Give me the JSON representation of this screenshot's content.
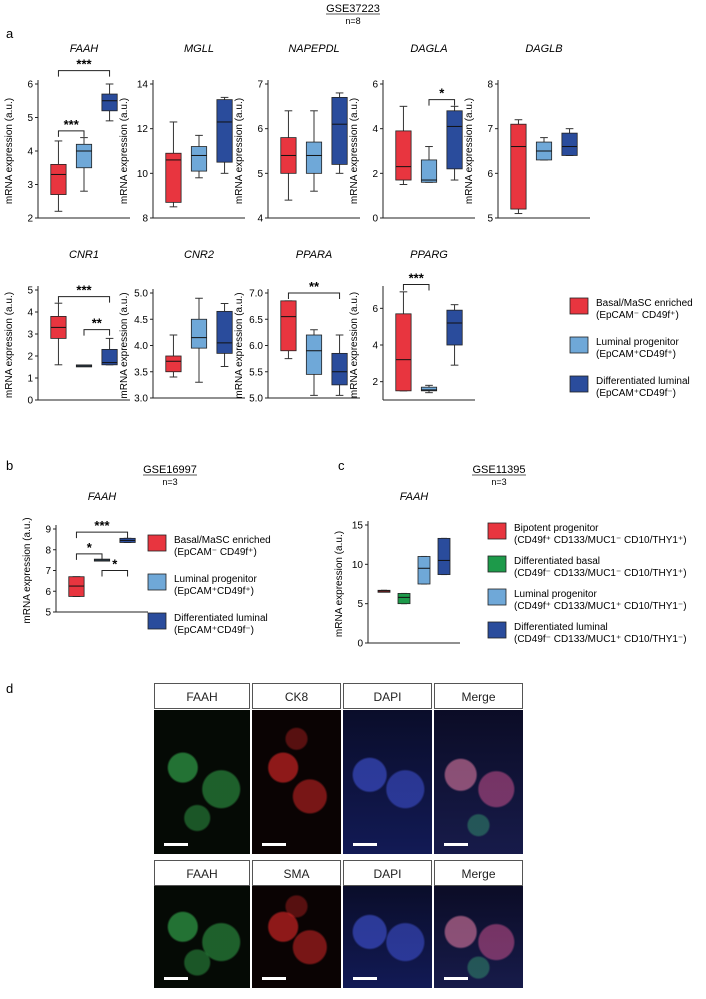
{
  "colors": {
    "red": "#e8353f",
    "light": "#6fa8d8",
    "dark": "#2a4c9c",
    "green": "#1d9a4a",
    "black": "#000000"
  },
  "sections": {
    "a": {
      "letter": "a",
      "dataset": "GSE37223",
      "n": "n=8"
    },
    "b": {
      "letter": "b",
      "dataset": "GSE16997",
      "n": "n=3"
    },
    "c": {
      "letter": "c",
      "dataset": "GSE11395",
      "n": "n=3"
    },
    "d": {
      "letter": "d"
    }
  },
  "ylabel": "mRNA expression (a.u.)",
  "legend_a": [
    {
      "line1": "Basal/MaSC enriched",
      "line2": "(EpCAM⁻ CD49f⁺)",
      "color": "red"
    },
    {
      "line1": "Luminal progenitor",
      "line2": "(EpCAM⁺CD49f⁺)",
      "color": "light"
    },
    {
      "line1": "Differentiated luminal",
      "line2": "(EpCAM⁺CD49f⁻)",
      "color": "dark"
    }
  ],
  "legend_c": [
    {
      "line1": "Bipotent progenitor",
      "line2": "(CD49f⁺ CD133/MUC1⁻ CD10/THY1⁺)",
      "color": "red"
    },
    {
      "line1": "Differentiated basal",
      "line2": "(CD49f⁻ CD133/MUC1⁻ CD10/THY1⁺)",
      "color": "green"
    },
    {
      "line1": "Luminal progenitor",
      "line2": "(CD49f⁺ CD133/MUC1⁺ CD10/THY1⁻)",
      "color": "light"
    },
    {
      "line1": "Differentiated luminal",
      "line2": "(CD49f⁻ CD133/MUC1⁺ CD10/THY1⁻)",
      "color": "dark"
    }
  ],
  "chart_data": [
    {
      "type": "box",
      "title": "FAAH",
      "ylim": [
        2,
        6
      ],
      "yticks": [
        "2",
        "3",
        "4",
        "5",
        "6"
      ],
      "colors": [
        "red",
        "light",
        "dark"
      ],
      "boxes": [
        {
          "min": 2.2,
          "q1": 2.7,
          "median": 3.3,
          "q3": 3.6,
          "max": 4.3
        },
        {
          "min": 2.8,
          "q1": 3.5,
          "median": 4.0,
          "q3": 4.2,
          "max": 4.4
        },
        {
          "min": 4.9,
          "q1": 5.2,
          "median": 5.5,
          "q3": 5.7,
          "max": 6.0
        }
      ],
      "sig": [
        {
          "label": "***",
          "from": 0,
          "to": 2,
          "y": 6.4
        },
        {
          "label": "***",
          "from": 0,
          "to": 1,
          "y": 4.6
        }
      ]
    },
    {
      "type": "box",
      "title": "MGLL",
      "ylim": [
        8,
        14
      ],
      "yticks": [
        "8",
        "10",
        "12",
        "14"
      ],
      "colors": [
        "red",
        "light",
        "dark"
      ],
      "boxes": [
        {
          "min": 8.5,
          "q1": 8.7,
          "median": 10.6,
          "q3": 10.9,
          "max": 12.3
        },
        {
          "min": 9.8,
          "q1": 10.1,
          "median": 10.8,
          "q3": 11.2,
          "max": 11.7
        },
        {
          "min": 10.0,
          "q1": 10.5,
          "median": 12.3,
          "q3": 13.3,
          "max": 13.4
        }
      ],
      "sig": []
    },
    {
      "type": "box",
      "title": "NAPEPDL",
      "ylim": [
        4,
        7
      ],
      "yticks": [
        "4",
        "5",
        "6",
        "7"
      ],
      "colors": [
        "red",
        "light",
        "dark"
      ],
      "boxes": [
        {
          "min": 4.4,
          "q1": 5.0,
          "median": 5.4,
          "q3": 5.8,
          "max": 6.4
        },
        {
          "min": 4.6,
          "q1": 5.0,
          "median": 5.4,
          "q3": 5.7,
          "max": 6.4
        },
        {
          "min": 5.0,
          "q1": 5.2,
          "median": 6.1,
          "q3": 6.7,
          "max": 6.8
        }
      ],
      "sig": []
    },
    {
      "type": "box",
      "title": "DAGLA",
      "ylim": [
        0,
        6
      ],
      "yticks": [
        "0",
        "2",
        "4",
        "6"
      ],
      "colors": [
        "red",
        "light",
        "dark"
      ],
      "boxes": [
        {
          "min": 1.5,
          "q1": 1.7,
          "median": 2.3,
          "q3": 3.9,
          "max": 5.0
        },
        {
          "min": 1.6,
          "q1": 1.6,
          "median": 1.7,
          "q3": 2.6,
          "max": 3.2
        },
        {
          "min": 1.7,
          "q1": 2.2,
          "median": 4.1,
          "q3": 4.8,
          "max": 5.0
        }
      ],
      "sig": [
        {
          "label": "*",
          "from": 1,
          "to": 2,
          "y": 5.3
        }
      ]
    },
    {
      "type": "box",
      "title": "DAGLB",
      "ylim": [
        5,
        8
      ],
      "yticks": [
        "5",
        "6",
        "7",
        "8"
      ],
      "colors": [
        "red",
        "light",
        "dark"
      ],
      "boxes": [
        {
          "min": 5.1,
          "q1": 5.2,
          "median": 6.6,
          "q3": 7.1,
          "max": 7.2
        },
        {
          "min": 6.3,
          "q1": 6.3,
          "median": 6.5,
          "q3": 6.7,
          "max": 6.8
        },
        {
          "min": 6.4,
          "q1": 6.4,
          "median": 6.6,
          "q3": 6.9,
          "max": 7.0
        }
      ],
      "sig": []
    },
    {
      "type": "box",
      "title": "CNR1",
      "ylim": [
        0,
        5
      ],
      "yticks": [
        "0",
        "1",
        "2",
        "3",
        "4",
        "5"
      ],
      "colors": [
        "red",
        "light",
        "dark"
      ],
      "boxes": [
        {
          "min": 1.6,
          "q1": 2.8,
          "median": 3.3,
          "q3": 3.8,
          "max": 4.4
        },
        {
          "min": 1.55,
          "q1": 1.55,
          "median": 1.55,
          "q3": 1.55,
          "max": 1.55
        },
        {
          "min": 1.6,
          "q1": 1.6,
          "median": 1.7,
          "q3": 2.3,
          "max": 2.8
        }
      ],
      "sig": [
        {
          "label": "***",
          "from": 0,
          "to": 2,
          "y": 4.7
        },
        {
          "label": "**",
          "from": 1,
          "to": 2,
          "y": 3.2
        }
      ]
    },
    {
      "type": "box",
      "title": "CNR2",
      "ylim": [
        3,
        5
      ],
      "yticks": [
        "3.0",
        "3.5",
        "4.0",
        "4.5",
        "5.0"
      ],
      "colors": [
        "red",
        "light",
        "dark"
      ],
      "boxes": [
        {
          "min": 3.4,
          "q1": 3.5,
          "median": 3.7,
          "q3": 3.8,
          "max": 4.2
        },
        {
          "min": 3.3,
          "q1": 3.95,
          "median": 4.15,
          "q3": 4.5,
          "max": 4.9
        },
        {
          "min": 3.6,
          "q1": 3.85,
          "median": 4.05,
          "q3": 4.65,
          "max": 4.8
        }
      ],
      "sig": []
    },
    {
      "type": "box",
      "title": "PPARA",
      "ylim": [
        5,
        7
      ],
      "yticks": [
        "5.0",
        "5.5",
        "6.0",
        "6.5",
        "7.0"
      ],
      "colors": [
        "red",
        "light",
        "dark"
      ],
      "boxes": [
        {
          "min": 5.75,
          "q1": 5.9,
          "median": 6.55,
          "q3": 6.85,
          "max": 6.85
        },
        {
          "min": 5.05,
          "q1": 5.45,
          "median": 5.9,
          "q3": 6.2,
          "max": 6.3
        },
        {
          "min": 5.05,
          "q1": 5.25,
          "median": 5.5,
          "q3": 5.85,
          "max": 6.2
        }
      ],
      "sig": [
        {
          "label": "**",
          "from": 0,
          "to": 2,
          "y": 7.0
        }
      ]
    },
    {
      "type": "box",
      "title": "PPARG",
      "ylim": [
        1,
        7
      ],
      "yticks": [
        "2",
        "4",
        "6"
      ],
      "colors": [
        "red",
        "light",
        "dark"
      ],
      "boxes": [
        {
          "min": 1.5,
          "q1": 1.5,
          "median": 3.2,
          "q3": 5.7,
          "max": 6.9
        },
        {
          "min": 1.4,
          "q1": 1.5,
          "median": 1.55,
          "q3": 1.7,
          "max": 1.8
        },
        {
          "min": 2.9,
          "q1": 4.0,
          "median": 5.2,
          "q3": 5.9,
          "max": 6.2
        }
      ],
      "sig": [
        {
          "label": "***",
          "from": 0,
          "to": 1,
          "y": 7.3
        }
      ]
    },
    {
      "type": "box",
      "title": "FAAH",
      "ylim": [
        5,
        9
      ],
      "yticks": [
        "5",
        "6",
        "7",
        "8",
        "9"
      ],
      "colors": [
        "red",
        "light",
        "dark"
      ],
      "boxes": [
        {
          "min": 5.75,
          "q1": 5.75,
          "median": 6.25,
          "q3": 6.7,
          "max": 6.7
        },
        {
          "min": 7.5,
          "q1": 7.5,
          "median": 7.5,
          "q3": 7.5,
          "max": 7.5
        },
        {
          "min": 8.35,
          "q1": 8.35,
          "median": 8.45,
          "q3": 8.55,
          "max": 8.55
        }
      ],
      "sig": [
        {
          "label": "***",
          "from": 0,
          "to": 2,
          "y": 8.85
        },
        {
          "label": "*",
          "from": 0,
          "to": 1,
          "y": 7.8
        },
        {
          "label": "*",
          "from": 1,
          "to": 2,
          "y": 7.0
        }
      ]
    },
    {
      "type": "box",
      "title": "FAAH",
      "ylim": [
        0,
        15
      ],
      "yticks": [
        "0",
        "5",
        "10",
        "15"
      ],
      "colors": [
        "red",
        "green",
        "light",
        "dark"
      ],
      "boxes": [
        {
          "min": 6.5,
          "q1": 6.5,
          "median": 6.6,
          "q3": 6.7,
          "max": 6.7
        },
        {
          "min": 5.0,
          "q1": 5.0,
          "median": 5.8,
          "q3": 6.3,
          "max": 6.3
        },
        {
          "min": 7.5,
          "q1": 7.5,
          "median": 9.5,
          "q3": 11.0,
          "max": 11.0
        },
        {
          "min": 8.7,
          "q1": 8.7,
          "median": 10.5,
          "q3": 13.3,
          "max": 13.3
        }
      ],
      "sig": []
    }
  ],
  "micro": {
    "row1": [
      {
        "label": "FAAH",
        "stain": "green"
      },
      {
        "label": "CK8",
        "stain": "red"
      },
      {
        "label": "DAPI",
        "stain": "blue"
      },
      {
        "label": "Merge",
        "stain": "merge"
      }
    ],
    "row2": [
      {
        "label": "FAAH",
        "stain": "green"
      },
      {
        "label": "SMA",
        "stain": "red"
      },
      {
        "label": "DAPI",
        "stain": "blue"
      },
      {
        "label": "Merge",
        "stain": "merge"
      }
    ]
  }
}
